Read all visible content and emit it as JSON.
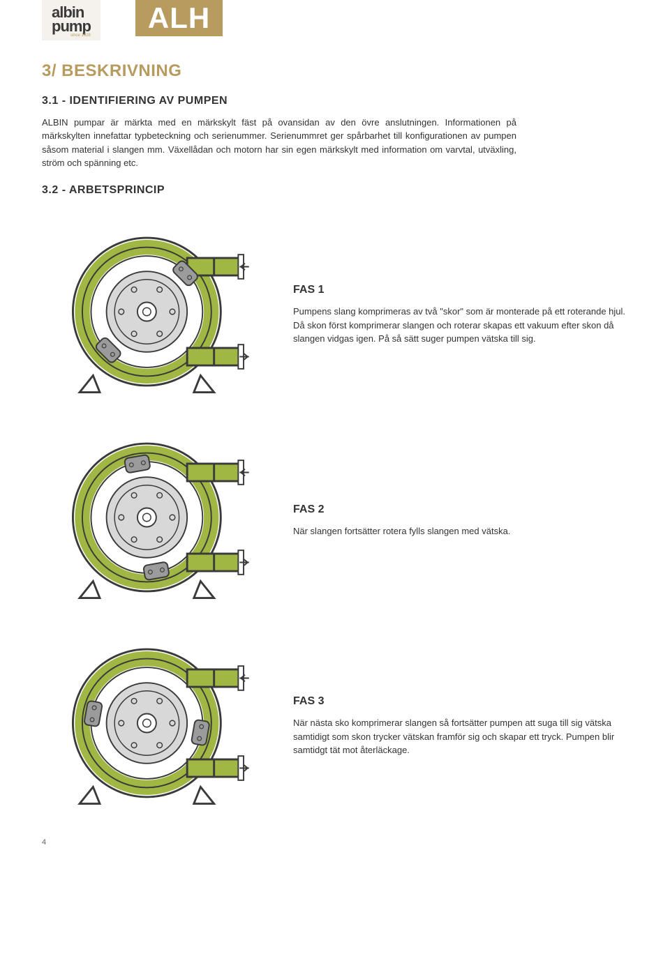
{
  "logo": {
    "line1": "albin",
    "line2": "pump",
    "since": "since 1928"
  },
  "model": "ALH",
  "section": {
    "title": "3/ BESKRIVNING"
  },
  "sub1": {
    "heading": "3.1 - IDENTIFIERING AV PUMPEN",
    "para": "ALBIN pumpar är märkta med en märkskylt fäst på ovansidan av den övre anslutningen. Informationen på märkskylten innefattar typbeteckning och serienummer. Serienummret ger spårbarhet till konfigurationen av pumpen såsom material i slangen mm. Växellådan och motorn har sin egen märkskylt med information om varvtal, utväxling, ström och spänning etc."
  },
  "sub2": {
    "heading": "3.2 - ARBETSPRINCIP"
  },
  "phases": [
    {
      "title": "FAS 1",
      "desc": "Pumpens slang komprimeras av två \"skor\" som är monterade på ett roterande hjul. Då skon först komprimerar slangen och roterar skapas ett vakuum efter skon då slangen vidgas igen. På så sätt suger pumpen vätska till sig.",
      "shoe_angle": 45
    },
    {
      "title": "FAS 2",
      "desc": "När slangen fortsätter rotera fylls slangen med vätska.",
      "shoe_angle": 170
    },
    {
      "title": "FAS 3",
      "desc": "När nästa sko komprimerar slangen så fortsätter pumpen att suga till sig vätska samtidigt som skon trycker vätskan framför sig och skapar ett tryck. Pumpen blir samtidgt tät mot återläckage.",
      "shoe_angle": 100
    }
  ],
  "colors": {
    "accent": "#b89b5e",
    "fluid": "#a0b843",
    "housing_stroke": "#3a3a3a",
    "housing_fill": "#ffffff",
    "shoe_fill": "#9b9b9b",
    "hub_fill": "#d8d8d8"
  },
  "page_number": "4"
}
